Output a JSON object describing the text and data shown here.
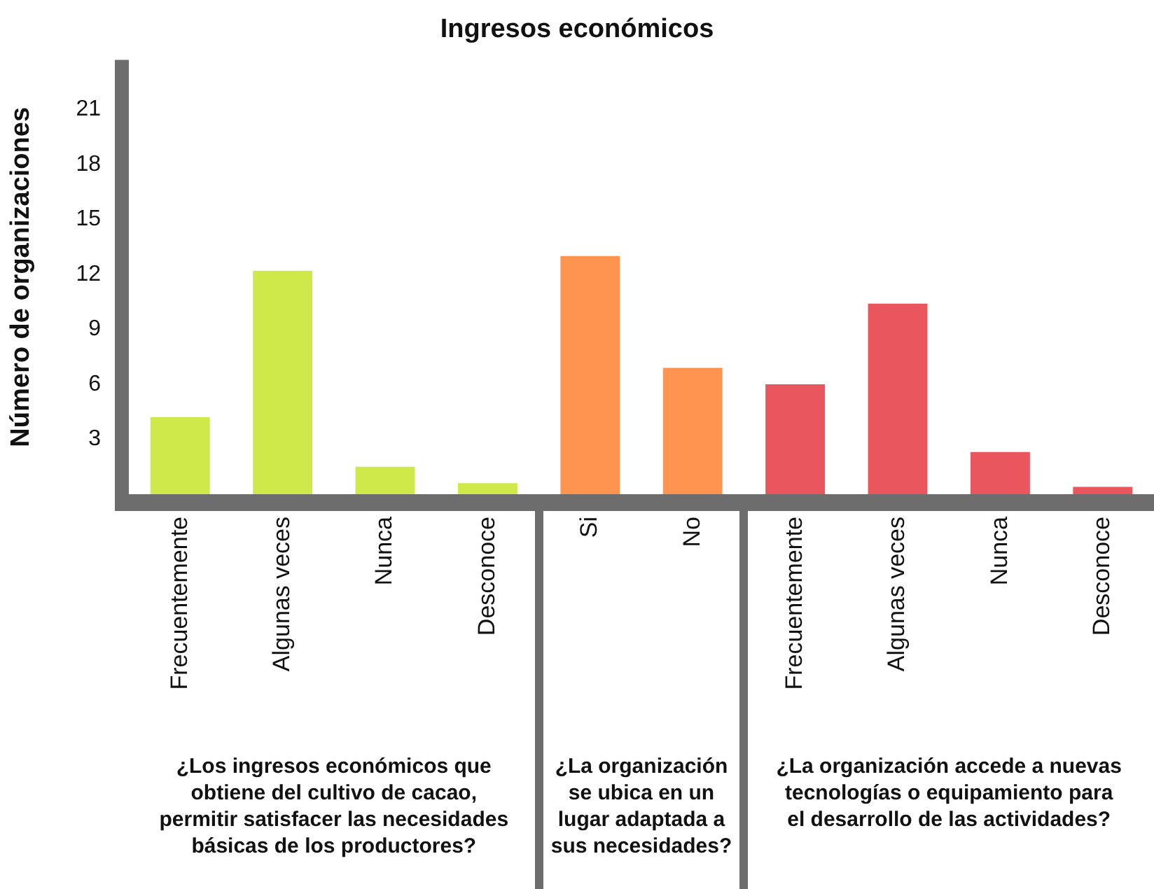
{
  "chart_data": {
    "type": "bar",
    "title": "Ingresos económicos",
    "ylabel": "Número de organizaciones",
    "categories": [
      "Frecuentemente",
      "Algunas veces",
      "Nunca",
      "Desconoce",
      "Si",
      "No",
      "Frecuentemente",
      "Algunas veces",
      "Nunca",
      "Desconoce"
    ],
    "values": [
      4.2,
      12.2,
      1.5,
      0.6,
      13,
      6.9,
      6,
      10.4,
      2.3,
      0.4
    ],
    "colors": [
      "#cfe84a",
      "#cfe84a",
      "#cfe84a",
      "#cfe84a",
      "#ff9450",
      "#ff9450",
      "#e9565e",
      "#e9565e",
      "#e9565e",
      "#e9565e"
    ],
    "ylim": [
      0,
      23.7
    ],
    "yticks": [
      3,
      6,
      9,
      12,
      15,
      18,
      21
    ],
    "grid": false,
    "legend": false,
    "annotations": [
      "¿Los ingresos económicos que obtiene del cultivo de cacao, permitir satisfacer las necesidades básicas de los productores?",
      "¿La organización se ubica en un lugar adaptada a sus necesidades?",
      "¿La organización accede a nuevas tecnologías o equipamiento para el desarrollo de las actividades?"
    ]
  }
}
